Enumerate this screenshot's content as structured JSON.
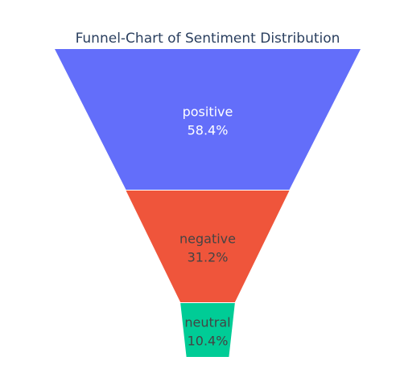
{
  "chart_data": {
    "type": "funnel",
    "title": "Funnel-Chart of Sentiment Distribution",
    "categories": [
      "positive",
      "negative",
      "neutral"
    ],
    "values": [
      58.4,
      31.2,
      10.4
    ],
    "labels": [
      "58.4%",
      "31.2%",
      "10.4%"
    ],
    "value_unit": "percent",
    "colors": [
      "#636efa",
      "#ef553b",
      "#00cc96"
    ],
    "text_colors": [
      "#ffffff",
      "#444444",
      "#444444"
    ],
    "legend": "none"
  }
}
